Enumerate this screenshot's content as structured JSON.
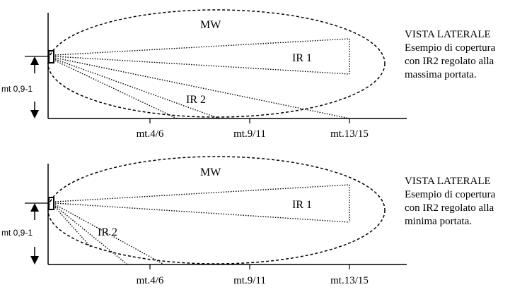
{
  "panels": [
    {
      "mw_label": "MW",
      "ir1_label": "IR 1",
      "ir2_label": "IR 2",
      "height_label": "mt 0,9-1",
      "ticks": [
        "mt.4/6",
        "mt.9/11",
        "mt.13/15"
      ],
      "caption": [
        "VISTA LATERALE",
        "Esempio di copertura",
        "con IR2 regolato alla",
        "massima portata."
      ]
    },
    {
      "mw_label": "MW",
      "ir1_label": "IR 1",
      "ir2_label": "IR 2",
      "height_label": "mt 0,9-1",
      "ticks": [
        "mt.4/6",
        "mt.9/11",
        "mt.13/15"
      ],
      "caption": [
        "VISTA LATERALE",
        "Esempio di copertura",
        "con IR2 regolato alla",
        "minima portata."
      ]
    }
  ]
}
